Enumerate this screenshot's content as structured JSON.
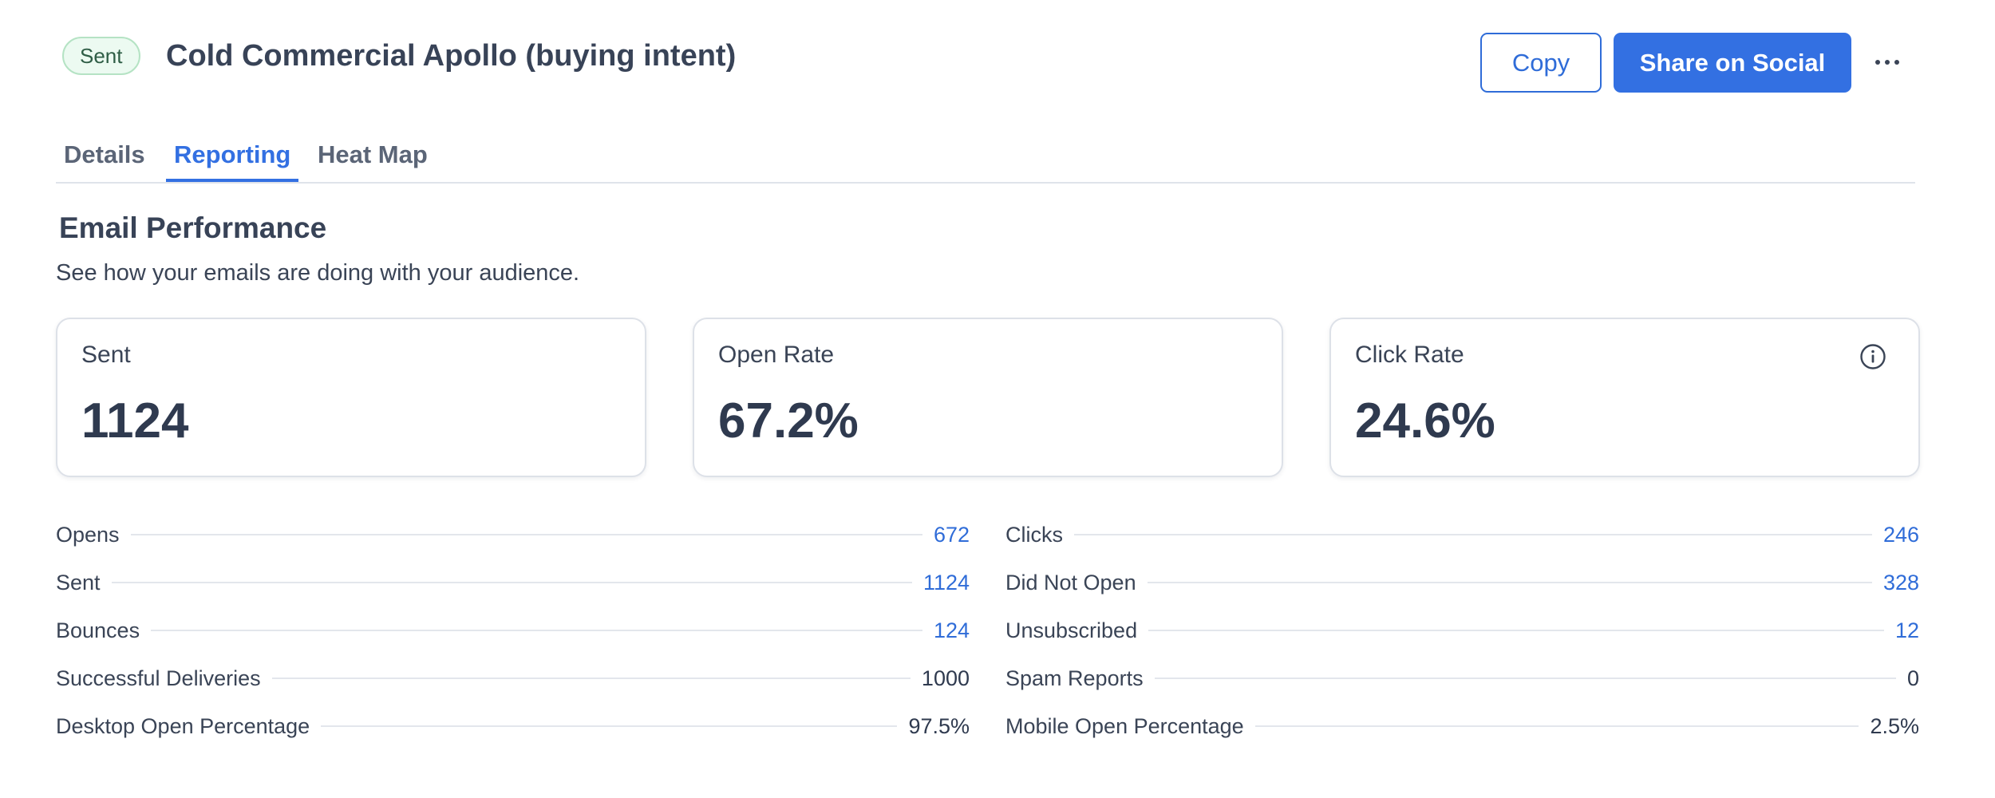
{
  "header": {
    "status_badge": "Sent",
    "title": "Cold Commercial Apollo (buying intent)",
    "copy_label": "Copy",
    "share_label": "Share on Social",
    "more_icon": "more-horizontal-icon"
  },
  "tabs": [
    {
      "label": "Details",
      "active": false
    },
    {
      "label": "Reporting",
      "active": true
    },
    {
      "label": "Heat Map",
      "active": false
    }
  ],
  "section": {
    "title": "Email Performance",
    "subtitle": "See how your emails are doing with your audience."
  },
  "cards": {
    "sent": {
      "label": "Sent",
      "value": "1124"
    },
    "open_rate": {
      "label": "Open Rate",
      "value": "67.2%"
    },
    "click_rate": {
      "label": "Click Rate",
      "value": "24.6%",
      "icon": "info-icon"
    }
  },
  "metrics_left": [
    {
      "label": "Opens",
      "value": "672",
      "link": true
    },
    {
      "label": "Sent",
      "value": "1124",
      "link": true
    },
    {
      "label": "Bounces",
      "value": "124",
      "link": true
    },
    {
      "label": "Successful Deliveries",
      "value": "1000",
      "link": false
    },
    {
      "label": "Desktop Open Percentage",
      "value": "97.5%",
      "link": false
    }
  ],
  "metrics_right": [
    {
      "label": "Clicks",
      "value": "246",
      "link": true
    },
    {
      "label": "Did Not Open",
      "value": "328",
      "link": true
    },
    {
      "label": "Unsubscribed",
      "value": "12",
      "link": true
    },
    {
      "label": "Spam Reports",
      "value": "0",
      "link": false
    },
    {
      "label": "Mobile Open Percentage",
      "value": "2.5%",
      "link": false
    }
  ],
  "colors": {
    "accent": "#3370e2",
    "badge_bg": "#ecfaf1",
    "badge_border": "#b5e3c4",
    "text": "#2f3a4f"
  }
}
